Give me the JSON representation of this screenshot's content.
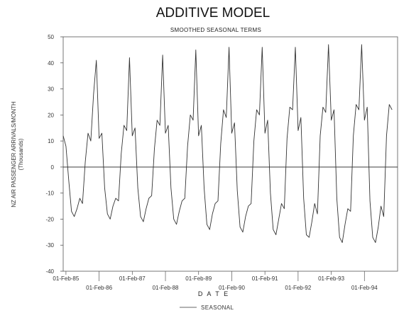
{
  "chart_data": {
    "type": "line",
    "title": "ADDITIVE MODEL",
    "subtitle": "SMOOTHED SEASONAL TERMS",
    "ylabel": "NZ AIR PASSENGER ARRIVALS/MONTH",
    "ylabel_sub": "(Thousands)",
    "xlabel": "D A T E",
    "ylim": [
      -40,
      50
    ],
    "yticks": [
      "50",
      "40",
      "30",
      "20",
      "10",
      "0",
      "-10",
      "-20",
      "-30",
      "-40"
    ],
    "y_tick_values": [
      50,
      40,
      30,
      20,
      10,
      0,
      -10,
      -20,
      -30,
      -40
    ],
    "x_range": [
      "1985-01",
      "1995-02"
    ],
    "x_tick_labels": [
      "01-Feb-85",
      "01-Feb-86",
      "01-Feb-87",
      "01-Feb-88",
      "01-Feb-89",
      "01-Feb-90",
      "01-Feb-91",
      "01-Feb-92",
      "01-Feb-93",
      "01-Feb-94"
    ],
    "x_tick_dates": [
      "1985-02",
      "1986-02",
      "1987-02",
      "1988-02",
      "1989-02",
      "1990-02",
      "1991-02",
      "1992-02",
      "1993-02",
      "1994-02"
    ],
    "zero_line": true,
    "grid": false,
    "legend_position": "bottom-center",
    "series": [
      {
        "name": "SEASONAL",
        "color": "#333333",
        "start": "1985-01",
        "end": "1994-12",
        "values": [
          12,
          8,
          -5,
          -17,
          -19,
          -16,
          -12,
          -14,
          2,
          13,
          10,
          28,
          41,
          11,
          13,
          -8,
          -18,
          -20,
          -15,
          -12,
          -13,
          5,
          16,
          14,
          42,
          12,
          15,
          -8,
          -19,
          -21,
          -16,
          -12,
          -11,
          7,
          18,
          16,
          43,
          13,
          16,
          -8,
          -20,
          -22,
          -17,
          -13,
          -12,
          8,
          20,
          18,
          45,
          12,
          16,
          -8,
          -22,
          -24,
          -18,
          -14,
          -13,
          9,
          22,
          19,
          46,
          13,
          17,
          -9,
          -23,
          -25,
          -19,
          -15,
          -14,
          10,
          22,
          20,
          46,
          13,
          18,
          -10,
          -24,
          -26,
          -20,
          -14,
          -16,
          11,
          23,
          22,
          46,
          14,
          19,
          -12,
          -26,
          -27,
          -21,
          -14,
          -18,
          12,
          23,
          21,
          47,
          18,
          22,
          -12,
          -27,
          -29,
          -22,
          -16,
          -17,
          12,
          24,
          22,
          47,
          18,
          23,
          -13,
          -27,
          -29,
          -23,
          -15,
          -19,
          12,
          24,
          22
        ]
      }
    ]
  }
}
